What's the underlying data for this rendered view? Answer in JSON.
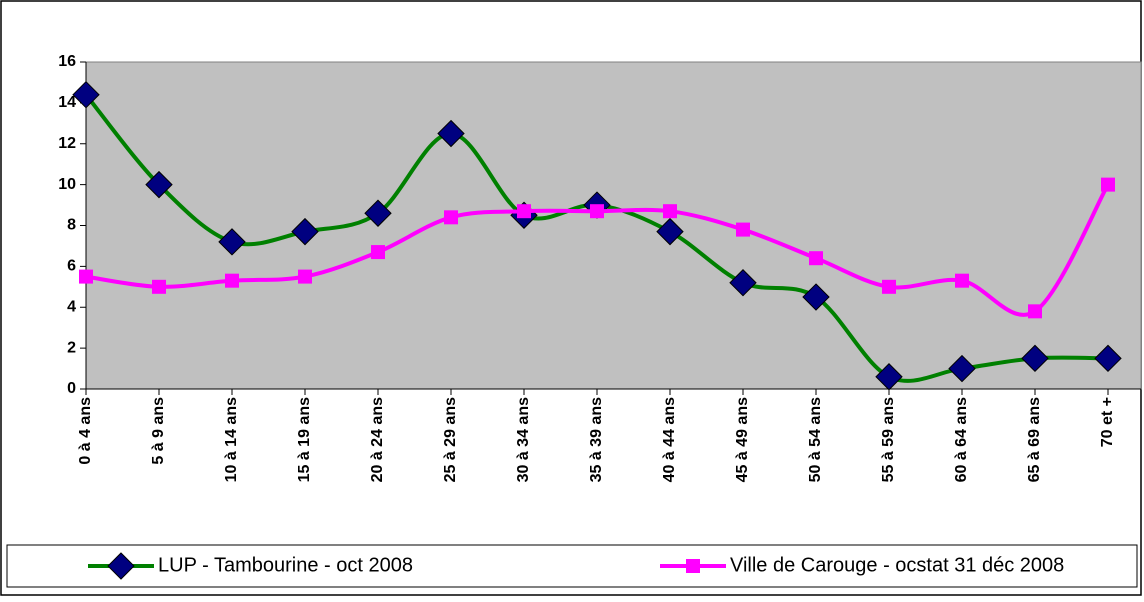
{
  "chart_data": {
    "type": "line",
    "categories": [
      "0 à 4 ans",
      "5 à 9 ans",
      "10 à 14 ans",
      "15 à 19 ans",
      "20 à 24 ans",
      "25 à 29 ans",
      "30 à 34 ans",
      "35 à 39 ans",
      "40 à 44 ans",
      "45 à 49 ans",
      "50 à 54 ans",
      "55 à 59 ans",
      "60 à 64 ans",
      "65 à 69 ans",
      "70 et +"
    ],
    "series": [
      {
        "name": "LUP - Tambourine - oct 2008",
        "color": "#008000",
        "marker": "diamond",
        "marker_color": "#000080",
        "values": [
          14.4,
          10,
          7.2,
          7.7,
          8.6,
          12.5,
          8.5,
          9,
          7.7,
          5.2,
          4.5,
          0.6,
          1,
          1.5,
          1.5
        ]
      },
      {
        "name": "Ville de Carouge - ocstat 31 déc 2008",
        "color": "#ff00ff",
        "marker": "square",
        "marker_color": "#ff00ff",
        "values": [
          5.5,
          5,
          5.3,
          5.5,
          6.7,
          8.4,
          8.7,
          8.7,
          8.7,
          7.8,
          6.4,
          5,
          5.3,
          3.8,
          10
        ]
      }
    ],
    "ylim": [
      0,
      16
    ],
    "yticks": [
      0,
      2,
      4,
      6,
      8,
      10,
      12,
      14,
      16
    ],
    "grid": false,
    "smooth": true,
    "legend": "bottom"
  }
}
